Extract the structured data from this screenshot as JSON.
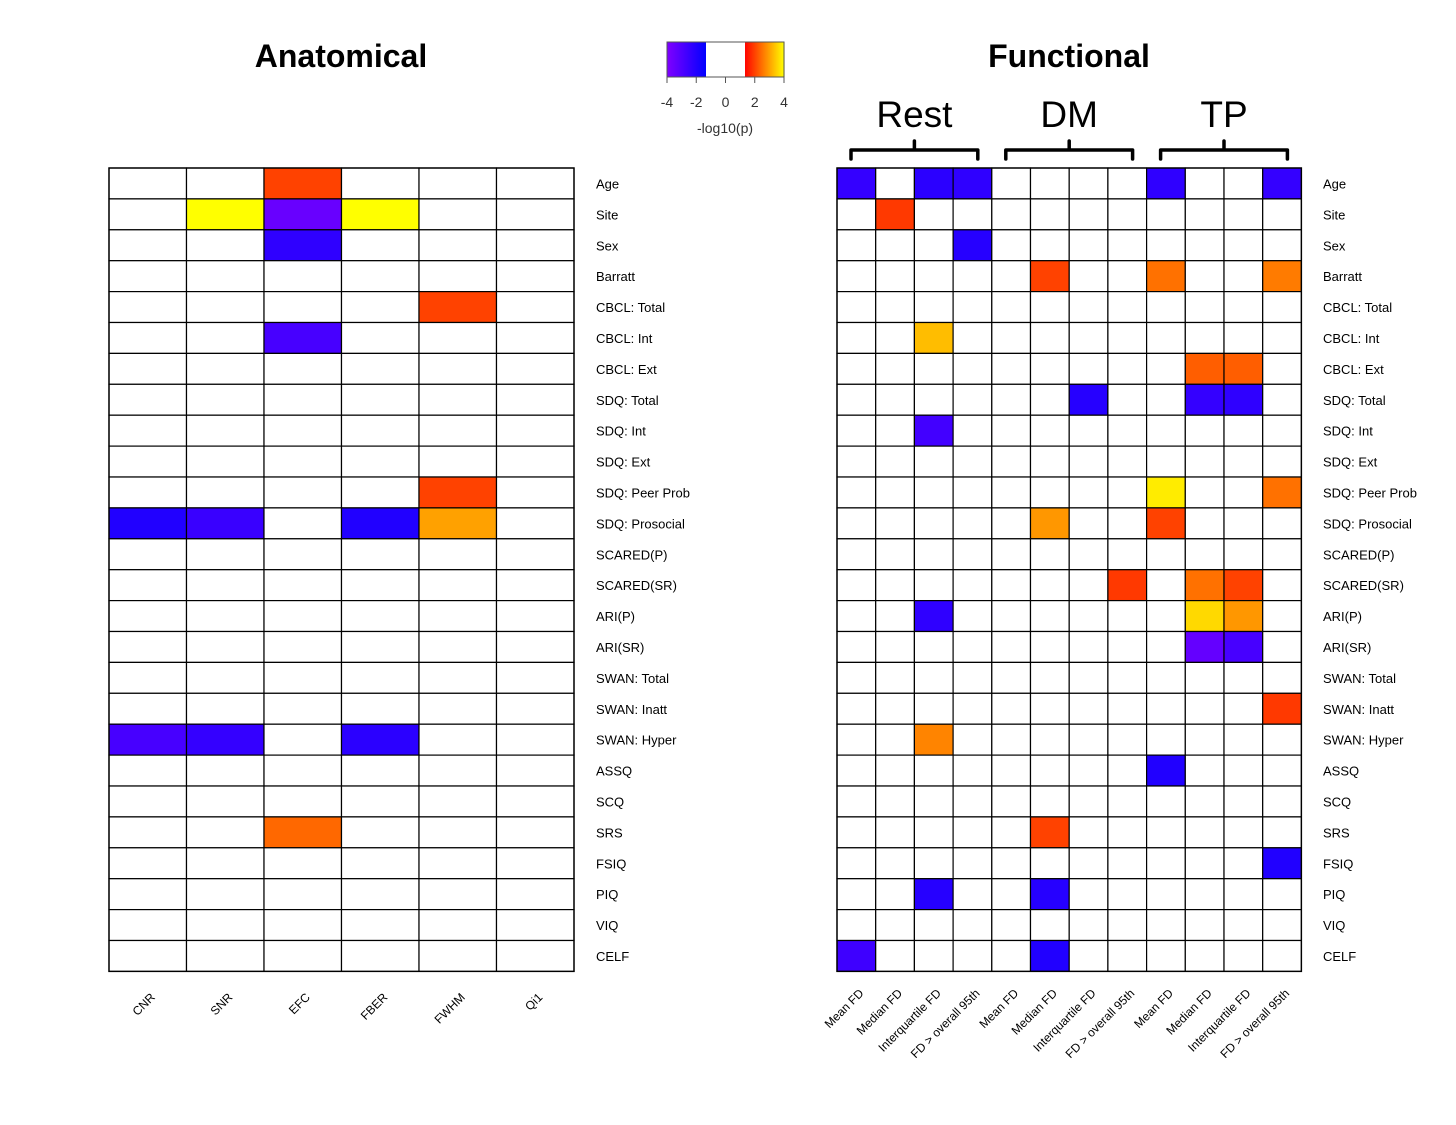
{
  "chart_data": [
    {
      "type": "heatmap",
      "title": "Anatomical",
      "columns": [
        "CNR",
        "SNR",
        "EFC",
        "FBER",
        "FWHM",
        "Qi1"
      ],
      "rows": [
        "Age",
        "Site",
        "Sex",
        "Barratt",
        "CBCL: Total",
        "CBCL: Int",
        "CBCL: Ext",
        "SDQ: Total",
        "SDQ: Int",
        "SDQ: Ext",
        "SDQ: Peer Prob",
        "SDQ: Prosocial",
        "SCARED(P)",
        "SCARED(SR)",
        "ARI(P)",
        "ARI(SR)",
        "SWAN: Total",
        "SWAN: Inatt",
        "SWAN: Hyper",
        "ASSQ",
        "SCQ",
        "SRS",
        "FSIQ",
        "PIQ",
        "VIQ",
        "CELF"
      ],
      "cells": [
        {
          "row": "Age",
          "col": "EFC",
          "value": 2.0
        },
        {
          "row": "Site",
          "col": "SNR",
          "value": 4.0
        },
        {
          "row": "Site",
          "col": "EFC",
          "value": -3.5
        },
        {
          "row": "Site",
          "col": "FBER",
          "value": 4.0
        },
        {
          "row": "Sex",
          "col": "EFC",
          "value": -2.3
        },
        {
          "row": "CBCL: Total",
          "col": "FWHM",
          "value": 2.0
        },
        {
          "row": "CBCL: Int",
          "col": "EFC",
          "value": -2.8
        },
        {
          "row": "SDQ: Peer Prob",
          "col": "FWHM",
          "value": 2.0
        },
        {
          "row": "SDQ: Prosocial",
          "col": "CNR",
          "value": -2.0
        },
        {
          "row": "SDQ: Prosocial",
          "col": "SNR",
          "value": -2.5
        },
        {
          "row": "SDQ: Prosocial",
          "col": "FBER",
          "value": -2.0
        },
        {
          "row": "SDQ: Prosocial",
          "col": "FWHM",
          "value": 3.0
        },
        {
          "row": "SWAN: Hyper",
          "col": "CNR",
          "value": -2.8
        },
        {
          "row": "SWAN: Hyper",
          "col": "SNR",
          "value": -2.4
        },
        {
          "row": "SWAN: Hyper",
          "col": "FBER",
          "value": -2.2
        },
        {
          "row": "SRS",
          "col": "EFC",
          "value": 2.4
        }
      ]
    },
    {
      "type": "heatmap",
      "title": "Functional",
      "groups": [
        {
          "label": "Rest",
          "columns": [
            0,
            3
          ]
        },
        {
          "label": "DM",
          "columns": [
            4,
            7
          ]
        },
        {
          "label": "TP",
          "columns": [
            8,
            11
          ]
        }
      ],
      "columns": [
        "Mean FD",
        "Median FD",
        "Interquartile FD",
        "FD > overall 95th",
        "Mean FD",
        "Median FD",
        "Interquartile FD",
        "FD > overall 95th",
        "Mean FD",
        "Median FD",
        "Interquartile FD",
        "FD > overall 95th"
      ],
      "rows": [
        "Age",
        "Site",
        "Sex",
        "Barratt",
        "CBCL: Total",
        "CBCL: Int",
        "CBCL: Ext",
        "SDQ: Total",
        "SDQ: Int",
        "SDQ: Ext",
        "SDQ: Peer Prob",
        "SDQ: Prosocial",
        "SCARED(P)",
        "SCARED(SR)",
        "ARI(P)",
        "ARI(SR)",
        "SWAN: Total",
        "SWAN: Inatt",
        "SWAN: Hyper",
        "ASSQ",
        "SCQ",
        "SRS",
        "FSIQ",
        "PIQ",
        "VIQ",
        "CELF"
      ],
      "cells": [
        {
          "row": 0,
          "col": 0,
          "value": -2.4
        },
        {
          "row": 0,
          "col": 2,
          "value": -2.2
        },
        {
          "row": 0,
          "col": 3,
          "value": -2.3
        },
        {
          "row": 0,
          "col": 8,
          "value": -2.3
        },
        {
          "row": 0,
          "col": 11,
          "value": -2.4
        },
        {
          "row": 1,
          "col": 1,
          "value": 1.9
        },
        {
          "row": 2,
          "col": 3,
          "value": -2.1
        },
        {
          "row": 3,
          "col": 5,
          "value": 2.0
        },
        {
          "row": 3,
          "col": 8,
          "value": 2.5
        },
        {
          "row": 3,
          "col": 11,
          "value": 2.6
        },
        {
          "row": 5,
          "col": 2,
          "value": 3.3
        },
        {
          "row": 6,
          "col": 9,
          "value": 2.3
        },
        {
          "row": 6,
          "col": 10,
          "value": 2.3
        },
        {
          "row": 7,
          "col": 6,
          "value": -2.1
        },
        {
          "row": 7,
          "col": 9,
          "value": -2.4
        },
        {
          "row": 7,
          "col": 10,
          "value": -2.3
        },
        {
          "row": 8,
          "col": 2,
          "value": -2.7
        },
        {
          "row": 10,
          "col": 8,
          "value": 3.8
        },
        {
          "row": 10,
          "col": 11,
          "value": 2.5
        },
        {
          "row": 11,
          "col": 5,
          "value": 2.9
        },
        {
          "row": 11,
          "col": 8,
          "value": 2.0
        },
        {
          "row": 13,
          "col": 7,
          "value": 1.9
        },
        {
          "row": 13,
          "col": 9,
          "value": 2.5
        },
        {
          "row": 13,
          "col": 10,
          "value": 2.0
        },
        {
          "row": 14,
          "col": 2,
          "value": -2.3
        },
        {
          "row": 14,
          "col": 9,
          "value": 3.6
        },
        {
          "row": 14,
          "col": 10,
          "value": 2.9
        },
        {
          "row": 15,
          "col": 9,
          "value": -3.4
        },
        {
          "row": 15,
          "col": 10,
          "value": -2.8
        },
        {
          "row": 17,
          "col": 11,
          "value": 1.9
        },
        {
          "row": 18,
          "col": 2,
          "value": 2.7
        },
        {
          "row": 19,
          "col": 8,
          "value": -2.0
        },
        {
          "row": 21,
          "col": 5,
          "value": 2.0
        },
        {
          "row": 22,
          "col": 11,
          "value": -2.0
        },
        {
          "row": 23,
          "col": 2,
          "value": -2.1
        },
        {
          "row": 23,
          "col": 5,
          "value": -2.1
        },
        {
          "row": 25,
          "col": 0,
          "value": -2.6
        },
        {
          "row": 25,
          "col": 5,
          "value": -2.0
        }
      ]
    }
  ],
  "legend": {
    "title": "-log10(p)",
    "ticks": [
      -4,
      -2,
      0,
      2,
      4
    ],
    "range": [
      -4,
      4
    ],
    "blank_range": [
      -1.3,
      1.3
    ],
    "colors": {
      "neg_high": "#8000ff",
      "neg_low": "#0000ff",
      "zero": "#ffffff",
      "pos_low": "#ff0000",
      "pos_high": "#ffff00"
    }
  }
}
